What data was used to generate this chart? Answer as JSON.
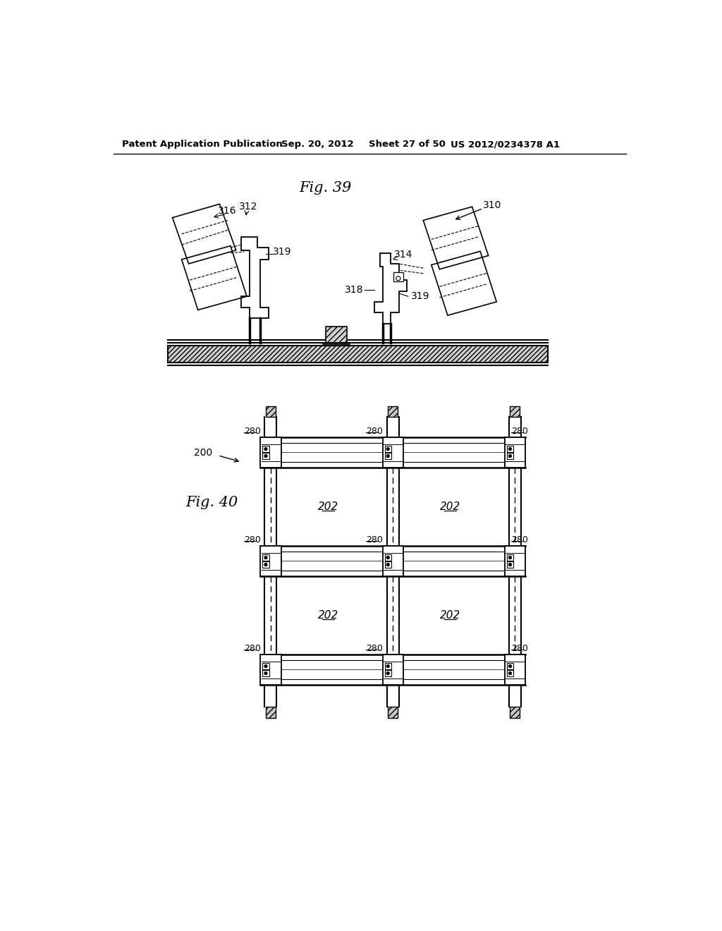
{
  "bg_color": "#ffffff",
  "header_text": "Patent Application Publication",
  "header_date": "Sep. 20, 2012",
  "header_sheet": "Sheet 27 of 50",
  "header_patent": "US 2012/0234378 A1",
  "fig39_title": "Fig. 39",
  "fig40_title": "Fig. 40",
  "label_310": "310",
  "label_316": "316",
  "label_312": "312",
  "label_319a": "319",
  "label_314": "314",
  "label_318": "318",
  "label_319b": "319",
  "label_200": "200",
  "label_202": "202",
  "label_280": "280"
}
